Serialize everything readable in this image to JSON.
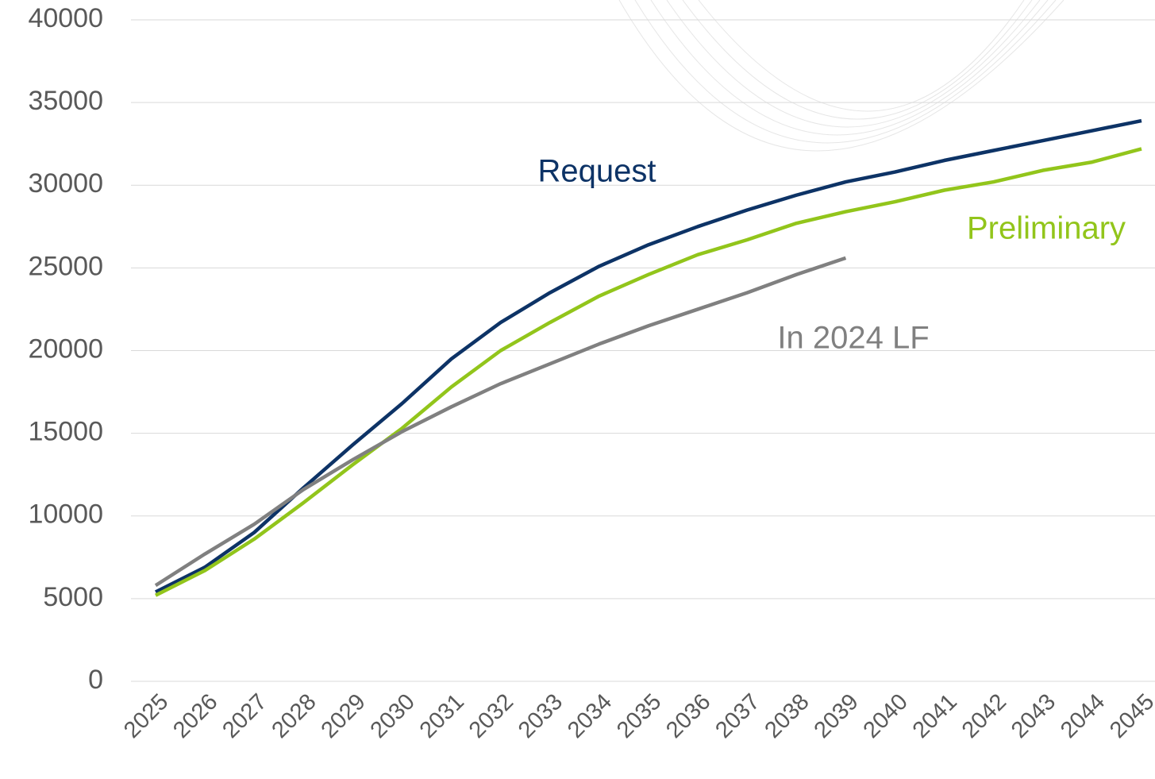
{
  "chart_data": {
    "type": "line",
    "categories": [
      "2025",
      "2026",
      "2027",
      "2028",
      "2029",
      "2030",
      "2031",
      "2032",
      "2033",
      "2034",
      "2035",
      "2036",
      "2037",
      "2038",
      "2039",
      "2040",
      "2041",
      "2042",
      "2043",
      "2044",
      "2045"
    ],
    "series": [
      {
        "name": "Request",
        "color": "#0d3366",
        "values": [
          5400,
          6900,
          9000,
          11700,
          14300,
          16800,
          19500,
          21700,
          23500,
          25100,
          26400,
          27500,
          28500,
          29400,
          30200,
          30800,
          31500,
          32100,
          32700,
          33300,
          33900
        ]
      },
      {
        "name": "Preliminary",
        "color": "#92c51b",
        "values": [
          5200,
          6700,
          8600,
          10800,
          13100,
          15300,
          17800,
          20000,
          21700,
          23300,
          24600,
          25800,
          26700,
          27700,
          28400,
          29000,
          29700,
          30200,
          30900,
          31400,
          32200
        ]
      },
      {
        "name": "In 2024 LF",
        "color": "#808080",
        "values": [
          5800,
          7700,
          9500,
          11600,
          13400,
          15100,
          16600,
          18000,
          19200,
          20400,
          21500,
          22500,
          23500,
          24600,
          25600,
          null,
          null,
          null,
          null,
          null,
          null
        ]
      }
    ],
    "ylim": [
      0,
      40000
    ],
    "yticks": [
      0,
      5000,
      10000,
      15000,
      20000,
      25000,
      30000,
      35000,
      40000
    ],
    "grid": true
  }
}
